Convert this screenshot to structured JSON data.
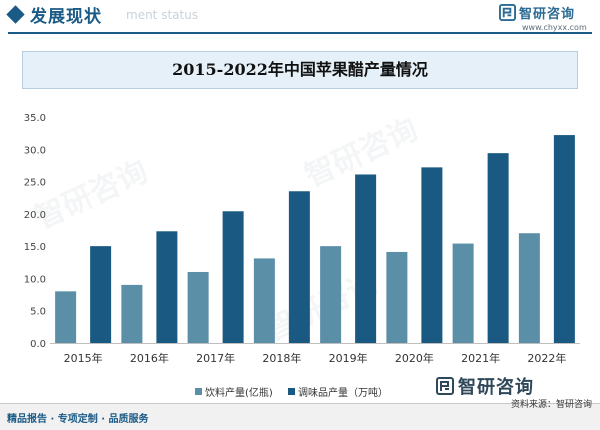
{
  "header": {
    "title": "发展现状",
    "subtitle_bg": "ment status",
    "logo_text": "智研咨询",
    "logo_url": "www.chyxx.com"
  },
  "chart_data": {
    "type": "bar",
    "title": "2015-2022年中国苹果醋产量情况",
    "categories": [
      "2015年",
      "2016年",
      "2017年",
      "2018年",
      "2019年",
      "2020年",
      "2021年",
      "2022年"
    ],
    "series": [
      {
        "name": "饮料产量(亿瓶)",
        "color": "#5b8fa8",
        "values": [
          8.0,
          9.0,
          11.0,
          13.1,
          15.0,
          14.1,
          15.4,
          17.0
        ]
      },
      {
        "name": "调味品产量（万吨）",
        "color": "#1a5a82",
        "values": [
          15.0,
          17.3,
          20.4,
          23.5,
          26.1,
          27.2,
          29.4,
          32.2
        ]
      }
    ],
    "yticks": [
      "0.0",
      "5.0",
      "10.0",
      "15.0",
      "20.0",
      "25.0",
      "30.0",
      "35.0"
    ],
    "ylim": [
      0,
      35
    ],
    "xlabel": "",
    "ylabel": "",
    "grid": false,
    "legend_position": "bottom"
  },
  "watermark": "智研咨询",
  "bottom_logo": "智研咨询",
  "footer": {
    "left": "精品报告 · 专项定制 · 品质服务",
    "right": "资料来源：智研咨询"
  }
}
